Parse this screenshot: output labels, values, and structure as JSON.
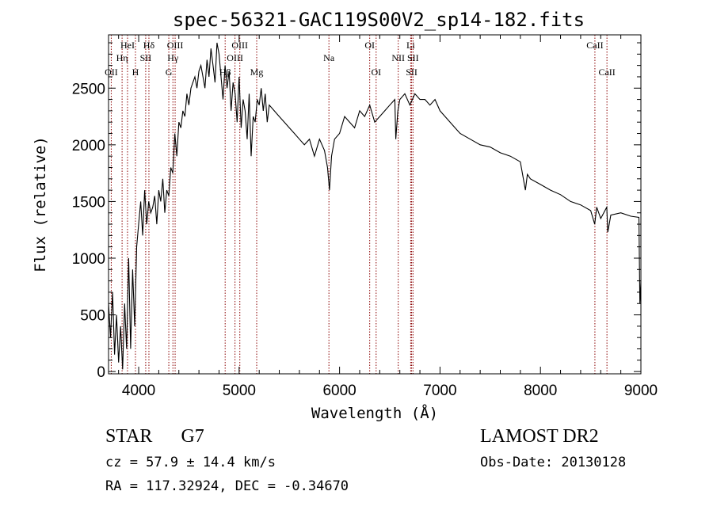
{
  "chart_data": {
    "type": "line",
    "title": "spec-56321-GAC119S00V2_sp14-182.fits",
    "xlabel": "Wavelength (Å)",
    "ylabel": "Flux (relative)",
    "xlim": [
      3700,
      9000
    ],
    "ylim": [
      -20,
      2970
    ],
    "x_ticks": [
      "4000",
      "5000",
      "6000",
      "7000",
      "8000",
      "9000"
    ],
    "x_tick_values": [
      4000,
      5000,
      6000,
      7000,
      8000,
      9000
    ],
    "y_ticks": [
      "0",
      "500",
      "1000",
      "1500",
      "2000",
      "2500"
    ],
    "y_tick_values": [
      0,
      500,
      1000,
      1500,
      2000,
      2500
    ],
    "grid": false,
    "series": [
      {
        "x": [
          3700,
          3720,
          3740,
          3760,
          3780,
          3800,
          3820,
          3840,
          3860,
          3880,
          3900,
          3920,
          3940,
          3960,
          3980,
          4000,
          4020,
          4040,
          4060,
          4080,
          4100,
          4120,
          4140,
          4160,
          4180,
          4200,
          4220,
          4240,
          4260,
          4280,
          4300,
          4320,
          4340,
          4360,
          4380,
          4400,
          4420,
          4440,
          4460,
          4480,
          4500,
          4520,
          4540,
          4560,
          4580,
          4600,
          4620,
          4640,
          4660,
          4680,
          4700,
          4720,
          4740,
          4760,
          4780,
          4800,
          4820,
          4840,
          4860,
          4880,
          4900,
          4920,
          4940,
          4960,
          4980,
          5000,
          5020,
          5040,
          5060,
          5080,
          5100,
          5120,
          5140,
          5160,
          5180,
          5200,
          5220,
          5240,
          5260,
          5280,
          5300,
          5350,
          5400,
          5450,
          5500,
          5550,
          5600,
          5650,
          5700,
          5750,
          5800,
          5850,
          5880,
          5900,
          5920,
          5950,
          6000,
          6050,
          6100,
          6150,
          6200,
          6250,
          6300,
          6350,
          6400,
          6450,
          6500,
          6550,
          6560,
          6580,
          6600,
          6650,
          6700,
          6750,
          6800,
          6850,
          6900,
          6950,
          7000,
          7050,
          7100,
          7150,
          7200,
          7300,
          7400,
          7500,
          7600,
          7700,
          7800,
          7850,
          7870,
          7900,
          8000,
          8100,
          8200,
          8300,
          8400,
          8500,
          8540,
          8560,
          8600,
          8660,
          8670,
          8700,
          8800,
          8900,
          8980,
          8990,
          9000
        ],
        "y": [
          600,
          300,
          700,
          150,
          500,
          80,
          400,
          20,
          600,
          200,
          1000,
          200,
          900,
          400,
          1100,
          1300,
          1500,
          1200,
          1600,
          1300,
          1500,
          1400,
          1450,
          1550,
          1300,
          1600,
          1500,
          1700,
          1400,
          1600,
          1550,
          1800,
          1750,
          2100,
          1900,
          2200,
          2150,
          2300,
          2250,
          2450,
          2350,
          2500,
          2550,
          2600,
          2500,
          2650,
          2700,
          2600,
          2500,
          2750,
          2600,
          2850,
          2700,
          2550,
          2900,
          2800,
          2600,
          2400,
          2700,
          2500,
          2650,
          2300,
          2550,
          2450,
          2200,
          2600,
          2150,
          2400,
          2300,
          2050,
          2450,
          1900,
          2250,
          2200,
          2400,
          2350,
          2500,
          2300,
          2450,
          2200,
          2350,
          2300,
          2250,
          2200,
          2150,
          2100,
          2050,
          2000,
          2050,
          1900,
          2050,
          1950,
          1800,
          1600,
          1900,
          2050,
          2100,
          2250,
          2200,
          2150,
          2300,
          2250,
          2350,
          2200,
          2250,
          2300,
          2350,
          2400,
          2050,
          2300,
          2400,
          2450,
          2350,
          2450,
          2400,
          2400,
          2350,
          2400,
          2300,
          2250,
          2200,
          2150,
          2100,
          2050,
          2000,
          1980,
          1930,
          1900,
          1850,
          1600,
          1740,
          1700,
          1650,
          1600,
          1560,
          1500,
          1470,
          1420,
          1300,
          1450,
          1350,
          1450,
          1230,
          1380,
          1400,
          1370,
          1360,
          600,
          800
        ]
      }
    ],
    "spectral_lines": [
      {
        "name": "OII",
        "wavelength": 3727,
        "row": 3
      },
      {
        "name": "Hη",
        "wavelength": 3835,
        "row": 2
      },
      {
        "name": "HeI",
        "wavelength": 3889,
        "row": 1
      },
      {
        "name": "H",
        "wavelength": 3968,
        "row": 3
      },
      {
        "name": "SII",
        "wavelength": 4070,
        "row": 2
      },
      {
        "name": "Hδ",
        "wavelength": 4102,
        "row": 1
      },
      {
        "name": "G",
        "wavelength": 4300,
        "row": 3
      },
      {
        "name": "Hγ",
        "wavelength": 4341,
        "row": 2
      },
      {
        "name": "OIII",
        "wavelength": 4363,
        "row": 1
      },
      {
        "name": "Hβ",
        "wavelength": 4861,
        "row": 3
      },
      {
        "name": "OIII",
        "wavelength": 4959,
        "row": 2
      },
      {
        "name": "OIII",
        "wavelength": 5007,
        "row": 1
      },
      {
        "name": "Mg",
        "wavelength": 5175,
        "row": 3
      },
      {
        "name": "Na",
        "wavelength": 5894,
        "row": 2
      },
      {
        "name": "OI",
        "wavelength": 6300,
        "row": 1
      },
      {
        "name": "OI",
        "wavelength": 6364,
        "row": 3
      },
      {
        "name": "NII",
        "wavelength": 6584,
        "row": 2
      },
      {
        "name": "Li",
        "wavelength": 6708,
        "row": 1
      },
      {
        "name": "SII",
        "wavelength": 6717,
        "row": 3
      },
      {
        "name": "SII",
        "wavelength": 6731,
        "row": 2
      },
      {
        "name": "CaII",
        "wavelength": 8542,
        "row": 1
      },
      {
        "name": "CaII",
        "wavelength": 8662,
        "row": 3
      }
    ],
    "colors": {
      "line": "#000000",
      "marker": "#8b0000"
    }
  },
  "info": {
    "class_label": "STAR",
    "subclass": "G7",
    "survey": "LAMOST DR2",
    "cz": "cz = 57.9 ± 14.4 km/s",
    "obs_date": "Obs-Date: 20130128",
    "coords": "RA = 117.32924, DEC =  -0.34670"
  }
}
